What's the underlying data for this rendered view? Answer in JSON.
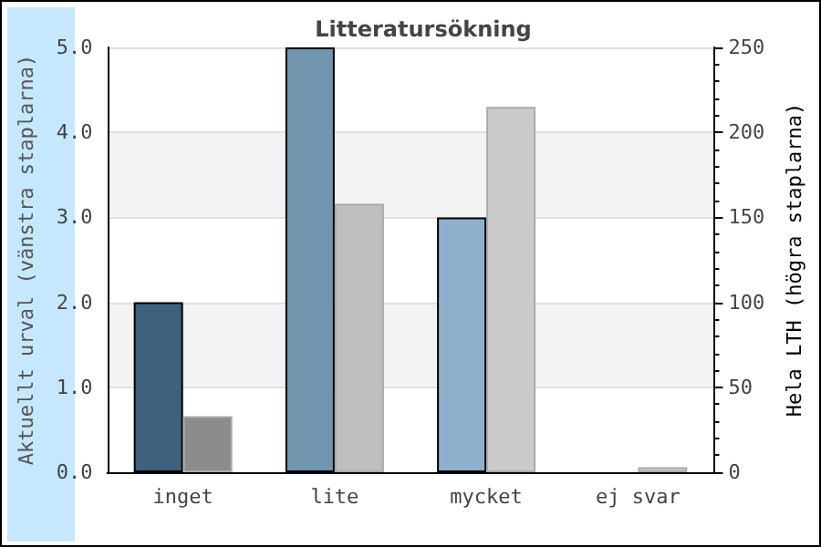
{
  "chart_data": {
    "type": "bar",
    "title": "Litteratursökning",
    "ylabel": "Aktuellt urval (vänstra staplarna)",
    "y2label": "Hela LTH (högra staplarna)",
    "categories": [
      "inget",
      "lite",
      "mycket",
      "ej svar"
    ],
    "series": [
      {
        "colors": [
          "#40617e",
          "#7295b0",
          "#8fb0cc",
          "#8fb0cc"
        ],
        "values": [
          2,
          5,
          3,
          0
        ]
      },
      {
        "colors": [
          "#8c8c8c",
          "#bfbfbf",
          "#cbcbcb",
          "#cbcbcb"
        ],
        "values": [
          33,
          158,
          215,
          3
        ],
        "axis": "y2"
      }
    ],
    "ylim": [
      0,
      5
    ],
    "yticks": [
      {
        "value": 0,
        "label": "0.0"
      },
      {
        "value": 1,
        "label": "1.0"
      },
      {
        "value": 2,
        "label": "2.0"
      },
      {
        "value": 3,
        "label": "3.0"
      },
      {
        "value": 4,
        "label": "4.0"
      },
      {
        "value": 5,
        "label": "5.0"
      }
    ],
    "y2lim": [
      0,
      250
    ],
    "y2ticks": [
      0,
      50,
      100,
      150,
      200,
      250
    ],
    "grid": "y"
  }
}
